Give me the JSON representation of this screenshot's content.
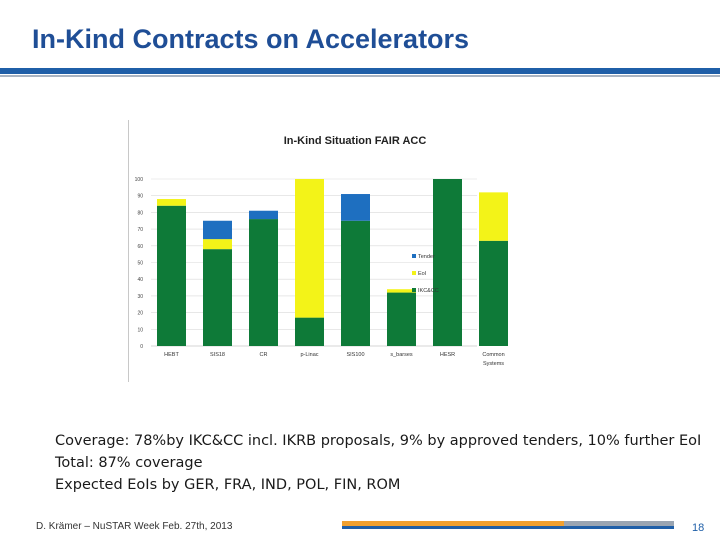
{
  "slide": {
    "title": "In-Kind Contracts on Accelerators",
    "page_number": "18",
    "footer": "D. Krämer – NuSTAR Week Feb. 27th, 2013",
    "bullets": [
      "Coverage: 78%by IKC&CC incl. IKRB proposals, 9% by approved tenders, 10% further EoI",
      "Total: 87% coverage",
      "Expected EoIs by GER, FRA, IND, POL, FIN, ROM"
    ],
    "colors": {
      "title": "#1f4e96",
      "rule_blue": "#1f5fa8",
      "footer_orange": "#f0a030",
      "footer_grey": "#9aa5b2"
    }
  },
  "chart_data": {
    "type": "bar",
    "stacked": true,
    "title": "In-Kind Situation FAIR ACC",
    "categories": [
      "HEBT",
      "SIS18",
      "CR",
      "p-Linac",
      "SIS100",
      "s_barses",
      "HESR",
      "Common Systems"
    ],
    "series": [
      {
        "name": "IKC&CC",
        "color": "#0e7a38",
        "values": [
          84,
          58,
          76,
          17,
          75,
          32,
          100,
          63
        ]
      },
      {
        "name": "EoI",
        "color": "#f3f318",
        "values": [
          4,
          6,
          0,
          83,
          0,
          2,
          0,
          29
        ]
      },
      {
        "name": "Tender",
        "color": "#1e6fc0",
        "values": [
          0,
          11,
          5,
          0,
          16,
          0,
          0,
          0
        ]
      }
    ],
    "legend_order": [
      "Tender",
      "EoI",
      "IKC&CC"
    ],
    "y_ticks": [
      "0",
      "10",
      "20",
      "30",
      "40",
      "50",
      "60",
      "70",
      "80",
      "90",
      "100"
    ],
    "ylim": [
      0,
      100
    ],
    "grid": true,
    "legend_position": "right"
  }
}
